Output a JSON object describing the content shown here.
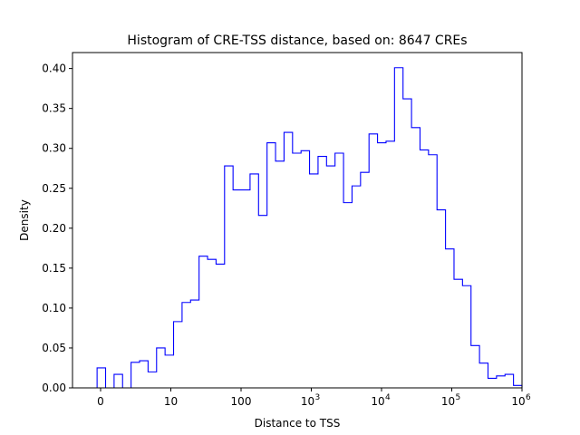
{
  "chart_data": {
    "type": "histogram",
    "title": "Histogram of CRE-TSS distance, based on: 8647 CREs",
    "xlabel": "Distance to TSS",
    "ylabel": "Density",
    "x_scale": "symlog",
    "xlim": [
      -0.4,
      6.0
    ],
    "ylim": [
      0.0,
      0.42
    ],
    "x_ticks": [
      {
        "value": 0,
        "label": "0"
      },
      {
        "value": 10,
        "label": "10"
      },
      {
        "value": 100,
        "label": "100"
      },
      {
        "value": 1000,
        "label": "10",
        "exp": "3"
      },
      {
        "value": 10000,
        "label": "10",
        "exp": "4"
      },
      {
        "value": 100000,
        "label": "10",
        "exp": "5"
      },
      {
        "value": 1000000,
        "label": "10",
        "exp": "6"
      }
    ],
    "y_ticks": [
      "0.00",
      "0.05",
      "0.10",
      "0.15",
      "0.20",
      "0.25",
      "0.30",
      "0.35",
      "0.40"
    ],
    "step_color": "#0000ff",
    "bin_density": [
      0.025,
      0.0,
      0.017,
      0.0,
      0.032,
      0.034,
      0.02,
      0.05,
      0.041,
      0.083,
      0.107,
      0.11,
      0.165,
      0.161,
      0.155,
      0.278,
      0.248,
      0.248,
      0.268,
      0.216,
      0.307,
      0.284,
      0.32,
      0.294,
      0.297,
      0.268,
      0.29,
      0.278,
      0.294,
      0.232,
      0.253,
      0.27,
      0.318,
      0.307,
      0.309,
      0.401,
      0.362,
      0.326,
      0.298,
      0.292,
      0.223,
      0.174,
      0.136,
      0.128,
      0.053,
      0.031,
      0.012,
      0.015,
      0.017,
      0.003
    ],
    "bin_range": [
      -0.05,
      6.0
    ]
  }
}
